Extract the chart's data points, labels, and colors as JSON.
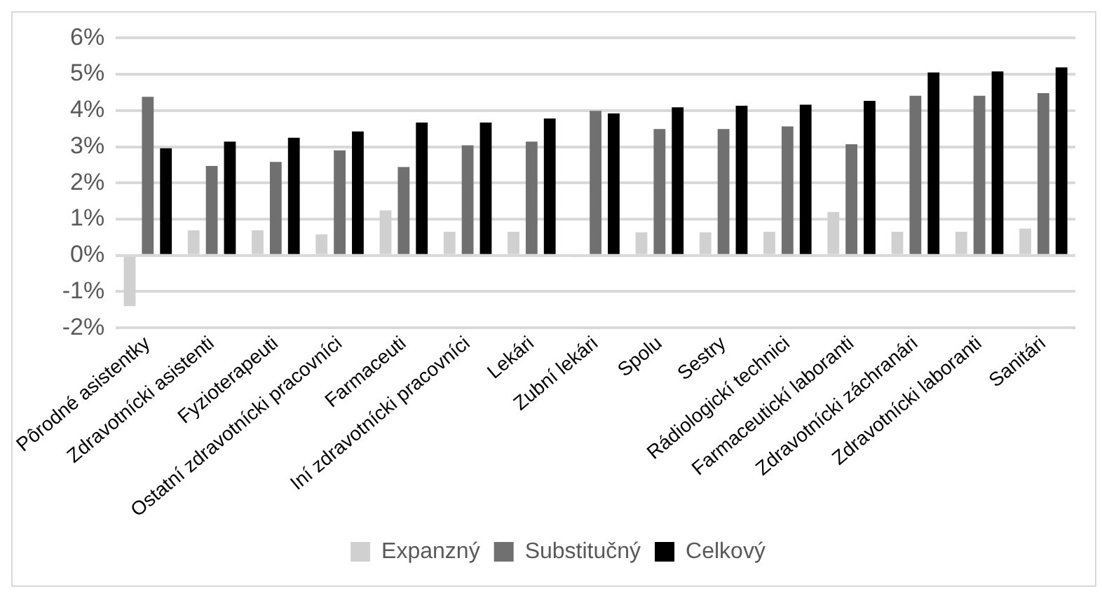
{
  "chart_data": {
    "type": "bar",
    "categories": [
      "Pôrodné asistentky",
      "Zdravotnícki asistenti",
      "Fyzioterapeuti",
      "Ostatní zdravotnícki pracovníci",
      "Farmaceuti",
      "Iní zdravotnícki pracovníci",
      "Lekári",
      "Zubní lekári",
      "Spolu",
      "Sestry",
      "Rádiologickí technici",
      "Farmaceutickí laboranti",
      "Zdravotnícki záchranári",
      "Zdravotnícki laboranti",
      "Sanitári"
    ],
    "series": [
      {
        "name": "Expanzný",
        "color": "#d0d0d0",
        "values": [
          -1.4,
          0.69,
          0.69,
          0.58,
          1.24,
          0.65,
          0.65,
          -0.03,
          0.64,
          0.64,
          0.65,
          1.2,
          0.65,
          0.65,
          0.74
        ]
      },
      {
        "name": "Substitučný",
        "color": "#707070",
        "values": [
          4.38,
          2.47,
          2.58,
          2.9,
          2.44,
          3.04,
          3.14,
          3.99,
          3.49,
          3.49,
          3.56,
          3.07,
          4.41,
          4.41,
          4.48
        ]
      },
      {
        "name": "Celkový",
        "color": "#000000",
        "values": [
          2.96,
          3.14,
          3.25,
          3.42,
          3.67,
          3.67,
          3.78,
          3.92,
          4.09,
          4.13,
          4.16,
          4.27,
          5.05,
          5.08,
          5.19
        ]
      }
    ],
    "ylim": [
      -2,
      6
    ],
    "yticks": [
      {
        "value": -2,
        "label": "-2%"
      },
      {
        "value": -1,
        "label": "-1%"
      },
      {
        "value": 0,
        "label": "0%"
      },
      {
        "value": 1,
        "label": "1%"
      },
      {
        "value": 2,
        "label": "2%"
      },
      {
        "value": 3,
        "label": "3%"
      },
      {
        "value": 4,
        "label": "4%"
      },
      {
        "value": 5,
        "label": "5%"
      },
      {
        "value": 6,
        "label": "6%"
      }
    ],
    "grid": "y",
    "legend": "bottom"
  }
}
